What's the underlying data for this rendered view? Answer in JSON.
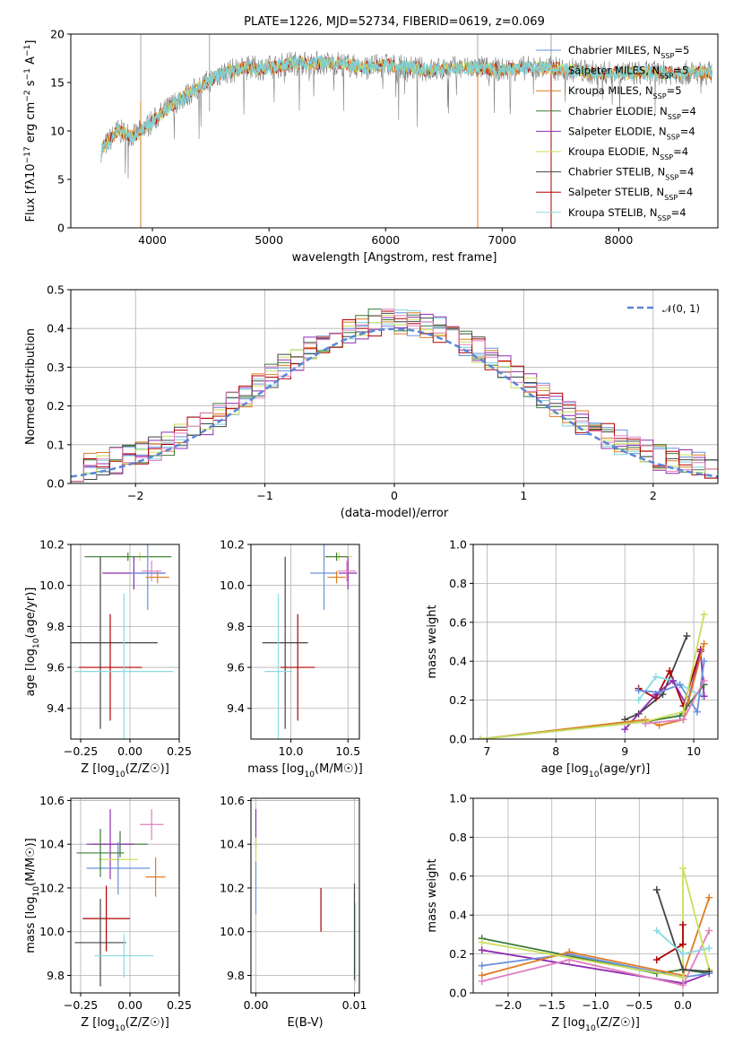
{
  "colors": {
    "chabrier_miles": "#6a8fde",
    "salpeter_miles": "#7ad3de",
    "kroupa_miles": "#e07b20",
    "chabrier_elodie": "#3a7a3a",
    "salpeter_elodie": "#8e2db0",
    "kroupa_elodie": "#c8e05a",
    "chabrier_stelib": "#444444",
    "salpeter_stelib": "#b00000",
    "kroupa_stelib": "#8adbe0",
    "pink": "#e080c0",
    "grid": "#b0b0b0",
    "normal": "#5a86d6"
  },
  "chart_data": [
    {
      "id": "spectrum",
      "type": "line",
      "title": "PLATE=1226, MJD=52734, FIBERID=0619, z=0.069",
      "xlabel": "wavelength [Angstrom, rest frame]",
      "ylabel": "Flux [f_λ10^-17 erg cm^-2 s^-1 A^-1]",
      "xlim": [
        3300,
        8850
      ],
      "ylim": [
        0,
        20
      ],
      "xticks": [
        "4000",
        "5000",
        "6000",
        "7000",
        "8000"
      ],
      "yticks": [
        "0",
        "5",
        "10",
        "15",
        "20"
      ],
      "grid": false,
      "legend_position": "right",
      "continuum": {
        "x": [
          3560,
          3700,
          3850,
          4000,
          4200,
          4400,
          4600,
          4800,
          5000,
          5200,
          5400,
          5600,
          5800,
          6000,
          6200,
          6400,
          6600,
          6800,
          7000,
          7200,
          7400,
          7600,
          7800,
          8000,
          8200,
          8400,
          8600,
          8800
        ],
        "y": [
          8,
          10,
          9.5,
          11,
          13,
          14.5,
          16,
          16.5,
          16.5,
          17,
          17,
          17,
          16.5,
          16.8,
          16.5,
          16.3,
          16.5,
          16.5,
          16.3,
          16.5,
          16.5,
          16.3,
          16,
          16,
          16,
          16,
          16,
          16
        ]
      },
      "legend": [
        {
          "name": "Chabrier MILES, N_SSP=5",
          "color_key": "chabrier_miles"
        },
        {
          "name": "Salpeter MILES, N_SSP=5",
          "color_key": "salpeter_miles"
        },
        {
          "name": "Kroupa MILES, N_SSP=5",
          "color_key": "kroupa_miles"
        },
        {
          "name": "Chabrier ELODIE, N_SSP=4",
          "color_key": "chabrier_elodie"
        },
        {
          "name": "Salpeter ELODIE, N_SSP=4",
          "color_key": "salpeter_elodie"
        },
        {
          "name": "Kroupa ELODIE, N_SSP=4",
          "color_key": "kroupa_elodie"
        },
        {
          "name": "Chabrier STELIB, N_SSP=4",
          "color_key": "chabrier_stelib"
        },
        {
          "name": "Salpeter STELIB, N_SSP=4",
          "color_key": "salpeter_stelib"
        },
        {
          "name": "Kroupa STELIB, N_SSP=4",
          "color_key": "kroupa_stelib"
        }
      ]
    },
    {
      "id": "residuals",
      "type": "line",
      "xlabel": "(data-model)/error",
      "ylabel": "Normed distribution",
      "xlim": [
        -2.5,
        2.5
      ],
      "ylim": [
        0,
        0.5
      ],
      "xticks": [
        "−2",
        "−1",
        "0",
        "1",
        "2"
      ],
      "yticks": [
        "0.0",
        "0.1",
        "0.2",
        "0.3",
        "0.4",
        "0.5"
      ],
      "grid": true,
      "legend": "𝒩(0, 1)",
      "legend_position": "top-right"
    },
    {
      "id": "age_vs_Z",
      "type": "scatter",
      "xlabel": "Z [log10(Z/Z☉)]",
      "ylabel": "age [log10(age/yr)]",
      "xlim": [
        -0.3,
        0.25
      ],
      "ylim": [
        9.25,
        10.2
      ],
      "xticks": [
        "−0.25",
        "0.00",
        "0.25"
      ],
      "yticks": [
        "9.4",
        "9.6",
        "9.8",
        "10.0",
        "10.2"
      ],
      "grid": true,
      "points": [
        {
          "x": 0.05,
          "y": 10.14,
          "xerr": 0.16,
          "yerr": 0.02,
          "color_key": "kroupa_elodie"
        },
        {
          "x": -0.01,
          "y": 10.14,
          "xerr": 0.22,
          "yerr": 0.02,
          "color_key": "chabrier_elodie"
        },
        {
          "x": 0.02,
          "y": 10.06,
          "xerr": 0.16,
          "yerr": 0.08,
          "color_key": "salpeter_elodie"
        },
        {
          "x": 0.11,
          "y": 10.07,
          "xerr": 0.05,
          "yerr": 0.05,
          "color_key": "pink"
        },
        {
          "x": 0.09,
          "y": 10.06,
          "xerr": 0.09,
          "yerr": 0.18,
          "color_key": "chabrier_miles"
        },
        {
          "x": 0.14,
          "y": 10.04,
          "xerr": 0.06,
          "yerr": 0.03,
          "color_key": "kroupa_miles"
        },
        {
          "x": -0.15,
          "y": 9.72,
          "xerr": 0.29,
          "yerr": 0.42,
          "color_key": "chabrier_stelib"
        },
        {
          "x": -0.1,
          "y": 9.6,
          "xerr": 0.16,
          "yerr": 0.26,
          "color_key": "salpeter_stelib"
        },
        {
          "x": -0.03,
          "y": 9.58,
          "xerr": 0.25,
          "yerr": 0.38,
          "color_key": "kroupa_stelib"
        }
      ]
    },
    {
      "id": "age_vs_mass",
      "type": "scatter",
      "xlabel": "mass [log10(M/M☉)]",
      "ylabel": "",
      "xlim": [
        9.65,
        10.6
      ],
      "ylim": [
        9.25,
        10.2
      ],
      "xticks": [
        "10.0",
        "10.5"
      ],
      "yticks": [
        "9.4",
        "9.6",
        "9.8",
        "10.0",
        "10.2"
      ],
      "grid": true,
      "points": [
        {
          "x": 10.42,
          "y": 10.14,
          "xerr": 0.12,
          "yerr": 0.02,
          "color_key": "kroupa_elodie"
        },
        {
          "x": 10.4,
          "y": 10.14,
          "xerr": 0.1,
          "yerr": 0.02,
          "color_key": "chabrier_elodie"
        },
        {
          "x": 10.5,
          "y": 10.06,
          "xerr": 0.08,
          "yerr": 0.08,
          "color_key": "salpeter_elodie"
        },
        {
          "x": 10.49,
          "y": 10.07,
          "xerr": 0.08,
          "yerr": 0.05,
          "color_key": "pink"
        },
        {
          "x": 10.29,
          "y": 10.06,
          "xerr": 0.12,
          "yerr": 0.18,
          "color_key": "chabrier_miles"
        },
        {
          "x": 10.4,
          "y": 10.04,
          "xerr": 0.08,
          "yerr": 0.03,
          "color_key": "kroupa_miles"
        },
        {
          "x": 9.95,
          "y": 9.72,
          "xerr": 0.2,
          "yerr": 0.42,
          "color_key": "chabrier_stelib"
        },
        {
          "x": 10.06,
          "y": 9.6,
          "xerr": 0.15,
          "yerr": 0.26,
          "color_key": "salpeter_stelib"
        },
        {
          "x": 9.89,
          "y": 9.58,
          "xerr": 0.12,
          "yerr": 0.38,
          "color_key": "kroupa_stelib"
        }
      ]
    },
    {
      "id": "weight_vs_age",
      "type": "line",
      "xlabel": "age [log10(age/yr)]",
      "ylabel": "mass weight",
      "xlim": [
        6.8,
        10.35
      ],
      "ylim": [
        0,
        1
      ],
      "xticks": [
        "7",
        "8",
        "9",
        "10"
      ],
      "yticks": [
        "0.0",
        "0.2",
        "0.4",
        "0.6",
        "0.8",
        "1.0"
      ],
      "grid": true,
      "series": [
        {
          "color_key": "chabrier_stelib",
          "x": [
            9.0,
            9.2,
            9.55,
            9.9
          ],
          "y": [
            0.1,
            0.13,
            0.23,
            0.53
          ]
        },
        {
          "color_key": "salpeter_stelib",
          "x": [
            9.2,
            9.45,
            9.65,
            9.85,
            10.1
          ],
          "y": [
            0.26,
            0.21,
            0.35,
            0.17,
            0.46
          ]
        },
        {
          "color_key": "kroupa_stelib",
          "x": [
            9.2,
            9.45,
            9.7,
            10.12
          ],
          "y": [
            0.2,
            0.32,
            0.3,
            0.22
          ]
        },
        {
          "color_key": "salpeter_elodie",
          "x": [
            9.0,
            9.45,
            9.7,
            9.9,
            10.1,
            10.15
          ],
          "y": [
            0.05,
            0.23,
            0.3,
            0.17,
            0.45,
            0.22
          ]
        },
        {
          "color_key": "chabrier_miles",
          "x": [
            9.2,
            9.5,
            9.8,
            10.05,
            10.15
          ],
          "y": [
            0.25,
            0.24,
            0.28,
            0.14,
            0.4
          ]
        },
        {
          "color_key": "kroupa_miles",
          "x": [
            6.9,
            9.3,
            9.5,
            9.85,
            10.15
          ],
          "y": [
            0.0,
            0.1,
            0.07,
            0.1,
            0.49
          ]
        },
        {
          "color_key": "chabrier_elodie",
          "x": [
            6.9,
            9.3,
            9.8,
            10.15
          ],
          "y": [
            0.0,
            0.09,
            0.12,
            0.28
          ]
        },
        {
          "color_key": "kroupa_elodie",
          "x": [
            6.9,
            9.3,
            9.85,
            10.15
          ],
          "y": [
            0.0,
            0.09,
            0.14,
            0.64
          ]
        },
        {
          "color_key": "pink",
          "x": [
            9.3,
            9.85,
            10.15
          ],
          "y": [
            0.08,
            0.1,
            0.3
          ]
        }
      ]
    },
    {
      "id": "mass_vs_Z",
      "type": "scatter",
      "xlabel": "Z [log10(Z/Z☉)]",
      "ylabel": "mass [log10(M/M☉)]",
      "xlim": [
        -0.3,
        0.25
      ],
      "ylim": [
        9.72,
        10.61
      ],
      "xticks": [
        "−0.25",
        "0.00",
        "0.25"
      ],
      "yticks": [
        "9.8",
        "10.0",
        "10.2",
        "10.4",
        "10.6"
      ],
      "grid": true,
      "points": [
        {
          "x": -0.05,
          "y": 10.4,
          "xerr": 0.14,
          "yerr": 0.06,
          "color_key": "chabrier_elodie"
        },
        {
          "x": -0.1,
          "y": 10.4,
          "xerr": 0.12,
          "yerr": 0.16,
          "color_key": "salpeter_elodie"
        },
        {
          "x": -0.06,
          "y": 10.33,
          "xerr": 0.1,
          "yerr": 0.06,
          "color_key": "kroupa_elodie"
        },
        {
          "x": 0.11,
          "y": 10.49,
          "xerr": 0.06,
          "yerr": 0.07,
          "color_key": "pink"
        },
        {
          "x": -0.06,
          "y": 10.29,
          "xerr": 0.16,
          "yerr": 0.12,
          "color_key": "chabrier_miles"
        },
        {
          "x": 0.13,
          "y": 10.25,
          "xerr": 0.05,
          "yerr": 0.09,
          "color_key": "kroupa_miles"
        },
        {
          "x": -0.15,
          "y": 10.36,
          "xerr": 0.12,
          "yerr": 0.11,
          "color_key": "chabrier_elodie"
        },
        {
          "x": -0.12,
          "y": 10.06,
          "xerr": 0.12,
          "yerr": 0.15,
          "color_key": "salpeter_stelib"
        },
        {
          "x": -0.15,
          "y": 9.95,
          "xerr": 0.13,
          "yerr": 0.2,
          "color_key": "chabrier_stelib"
        },
        {
          "x": -0.03,
          "y": 9.89,
          "xerr": 0.15,
          "yerr": 0.1,
          "color_key": "kroupa_stelib"
        }
      ]
    },
    {
      "id": "mass_vs_ebv",
      "type": "scatter",
      "xlabel": "E(B-V)",
      "ylabel": "",
      "xlim": [
        -0.0005,
        0.0105
      ],
      "ylim": [
        9.72,
        10.61
      ],
      "xticks": [
        "0.00",
        "0.01"
      ],
      "yticks": [
        "9.8",
        "10.0",
        "10.2",
        "10.4",
        "10.6"
      ],
      "grid": true,
      "points": [
        {
          "x": 0.0,
          "y": 10.47,
          "xerr": 0,
          "yerr": 0.09,
          "color_key": "salpeter_elodie"
        },
        {
          "x": 0.0,
          "y": 10.33,
          "xerr": 0,
          "yerr": 0.1,
          "color_key": "kroupa_elodie"
        },
        {
          "x": 0.0,
          "y": 10.2,
          "xerr": 0,
          "yerr": 0.12,
          "color_key": "chabrier_miles"
        },
        {
          "x": 0.0066,
          "y": 10.1,
          "xerr": 0,
          "yerr": 0.1,
          "color_key": "salpeter_stelib"
        },
        {
          "x": 0.01,
          "y": 10.0,
          "xerr": 0,
          "yerr": 0.22,
          "color_key": "chabrier_stelib"
        },
        {
          "x": 0.0101,
          "y": 9.95,
          "xerr": 0,
          "yerr": 0.18,
          "color_key": "kroupa_stelib"
        }
      ]
    },
    {
      "id": "weight_vs_Z",
      "type": "line",
      "xlabel": "Z [log10(Z/Z☉)]",
      "ylabel": "mass weight",
      "xlim": [
        -2.4,
        0.4
      ],
      "ylim": [
        0,
        1
      ],
      "xticks": [
        "−2.0",
        "−1.5",
        "−1.0",
        "−0.5",
        "0.0"
      ],
      "yticks": [
        "0.0",
        "0.2",
        "0.4",
        "0.6",
        "0.8",
        "1.0"
      ],
      "grid": true,
      "series": [
        {
          "color_key": "chabrier_elodie",
          "x": [
            -2.3,
            -0.3,
            0.0,
            0.3
          ],
          "y": [
            0.28,
            0.1,
            0.12,
            0.1
          ]
        },
        {
          "color_key": "salpeter_elodie",
          "x": [
            -2.3,
            0.0,
            0.3
          ],
          "y": [
            0.22,
            0.05,
            0.1
          ]
        },
        {
          "color_key": "chabrier_miles",
          "x": [
            -2.3,
            -1.3,
            0.0,
            0.3
          ],
          "y": [
            0.14,
            0.2,
            0.08,
            0.1
          ]
        },
        {
          "color_key": "kroupa_miles",
          "x": [
            -2.3,
            -1.3,
            0.0,
            0.3
          ],
          "y": [
            0.09,
            0.21,
            0.09,
            0.49
          ]
        },
        {
          "color_key": "pink",
          "x": [
            -2.3,
            -1.3,
            0.0,
            0.3
          ],
          "y": [
            0.06,
            0.17,
            0.04,
            0.32
          ]
        },
        {
          "color_key": "kroupa_elodie",
          "x": [
            -2.3,
            0.0,
            0.0,
            0.3
          ],
          "y": [
            0.26,
            0.08,
            0.64,
            0.12
          ]
        },
        {
          "color_key": "chabrier_stelib",
          "x": [
            -0.3,
            0.0,
            0.3
          ],
          "y": [
            0.53,
            0.12,
            0.11
          ]
        },
        {
          "color_key": "salpeter_stelib",
          "x": [
            -0.3,
            0.0,
            0.0
          ],
          "y": [
            0.17,
            0.25,
            0.35
          ]
        },
        {
          "color_key": "kroupa_stelib",
          "x": [
            -0.3,
            0.0,
            0.3
          ],
          "y": [
            0.32,
            0.2,
            0.23
          ]
        }
      ]
    }
  ]
}
